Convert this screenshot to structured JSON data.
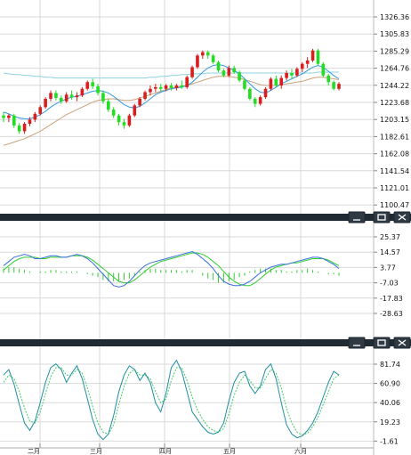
{
  "colors": {
    "up": "#d81e1e",
    "down": "#22dd22",
    "ma_short": "#3399dd",
    "ma_mid": "#c9a27a",
    "ma_long": "#8ed0e0",
    "macd_fast": "#3a6fd8",
    "macd_slow": "#33cc33",
    "kd_k": "#1f8fa0",
    "kd_d": "#44cc66",
    "panel_bar": "#1f2a33",
    "grid": "#d9d9d9"
  },
  "icons": [
    "minimize-icon",
    "restore-icon",
    "close-icon"
  ],
  "chart_data": [
    {
      "type": "candlestick",
      "panel": "price",
      "y_ticks": [
        "1326.36",
        "1305.83",
        "1285.29",
        "1264.76",
        "1244.22",
        "1223.68",
        "1203.15",
        "1182.61",
        "1162.08",
        "1141.54",
        "1121.01",
        "1100.47"
      ],
      "ylim": [
        1100.47,
        1326.36
      ],
      "x_months": [
        "二月",
        "三月",
        "四月",
        "五月",
        "六月"
      ],
      "candles": [
        [
          1208,
          1212,
          1200,
          1205
        ],
        [
          1205,
          1210,
          1200,
          1208
        ],
        [
          1208,
          1210,
          1193,
          1196
        ],
        [
          1196,
          1199,
          1186,
          1189
        ],
        [
          1189,
          1200,
          1186,
          1198
        ],
        [
          1198,
          1206,
          1195,
          1203
        ],
        [
          1203,
          1212,
          1200,
          1210
        ],
        [
          1210,
          1220,
          1208,
          1218
        ],
        [
          1218,
          1230,
          1216,
          1228
        ],
        [
          1228,
          1238,
          1225,
          1235
        ],
        [
          1235,
          1238,
          1226,
          1229
        ],
        [
          1229,
          1232,
          1222,
          1225
        ],
        [
          1225,
          1236,
          1223,
          1233
        ],
        [
          1233,
          1238,
          1227,
          1230
        ],
        [
          1230,
          1236,
          1225,
          1232
        ],
        [
          1232,
          1242,
          1230,
          1240
        ],
        [
          1240,
          1250,
          1238,
          1248
        ],
        [
          1248,
          1252,
          1240,
          1243
        ],
        [
          1243,
          1246,
          1232,
          1235
        ],
        [
          1235,
          1238,
          1222,
          1225
        ],
        [
          1225,
          1228,
          1212,
          1215
        ],
        [
          1215,
          1218,
          1205,
          1208
        ],
        [
          1208,
          1210,
          1196,
          1200
        ],
        [
          1200,
          1204,
          1192,
          1196
        ],
        [
          1196,
          1210,
          1194,
          1208
        ],
        [
          1208,
          1222,
          1206,
          1220
        ],
        [
          1220,
          1230,
          1218,
          1228
        ],
        [
          1228,
          1238,
          1226,
          1236
        ],
        [
          1236,
          1244,
          1232,
          1240
        ],
        [
          1240,
          1246,
          1236,
          1242
        ],
        [
          1242,
          1246,
          1237,
          1240
        ],
        [
          1240,
          1246,
          1237,
          1244
        ],
        [
          1244,
          1247,
          1238,
          1241
        ],
        [
          1241,
          1246,
          1238,
          1244
        ],
        [
          1244,
          1250,
          1240,
          1242
        ],
        [
          1242,
          1256,
          1240,
          1254
        ],
        [
          1254,
          1268,
          1252,
          1266
        ],
        [
          1266,
          1282,
          1264,
          1280
        ],
        [
          1280,
          1286,
          1276,
          1284
        ],
        [
          1284,
          1286,
          1276,
          1280
        ],
        [
          1280,
          1282,
          1270,
          1272
        ],
        [
          1272,
          1274,
          1260,
          1262
        ],
        [
          1262,
          1264,
          1254,
          1256
        ],
        [
          1256,
          1268,
          1254,
          1265
        ],
        [
          1265,
          1268,
          1258,
          1260
        ],
        [
          1260,
          1262,
          1248,
          1250
        ],
        [
          1250,
          1253,
          1238,
          1240
        ],
        [
          1240,
          1242,
          1226,
          1228
        ],
        [
          1228,
          1230,
          1218,
          1222
        ],
        [
          1222,
          1232,
          1220,
          1230
        ],
        [
          1230,
          1242,
          1228,
          1240
        ],
        [
          1240,
          1254,
          1238,
          1252
        ],
        [
          1252,
          1256,
          1242,
          1244
        ],
        [
          1244,
          1256,
          1240,
          1253
        ],
        [
          1253,
          1262,
          1250,
          1259
        ],
        [
          1259,
          1264,
          1252,
          1256
        ],
        [
          1256,
          1266,
          1254,
          1264
        ],
        [
          1264,
          1272,
          1260,
          1270
        ],
        [
          1270,
          1278,
          1265,
          1274
        ],
        [
          1274,
          1288,
          1272,
          1286
        ],
        [
          1286,
          1288,
          1268,
          1270
        ],
        [
          1270,
          1272,
          1254,
          1256
        ],
        [
          1256,
          1258,
          1244,
          1248
        ],
        [
          1248,
          1250,
          1238,
          1240
        ],
        [
          1240,
          1248,
          1238,
          1246
        ]
      ],
      "ma_short": [
        1212,
        1210,
        1207,
        1205,
        1204,
        1204,
        1206,
        1209,
        1213,
        1218,
        1222,
        1225,
        1228,
        1230,
        1231,
        1233,
        1235,
        1237,
        1238,
        1237,
        1235,
        1231,
        1226,
        1221,
        1218,
        1217,
        1219,
        1223,
        1228,
        1233,
        1236,
        1238,
        1240,
        1241,
        1242,
        1244,
        1248,
        1254,
        1260,
        1265,
        1268,
        1269,
        1268,
        1265,
        1262,
        1258,
        1252,
        1246,
        1240,
        1236,
        1235,
        1238,
        1242,
        1246,
        1249,
        1252,
        1255,
        1258,
        1262,
        1266,
        1268,
        1266,
        1261,
        1256,
        1252
      ],
      "ma_mid": [
        1172,
        1174,
        1176,
        1178,
        1180,
        1183,
        1186,
        1189,
        1193,
        1197,
        1201,
        1205,
        1209,
        1212,
        1215,
        1218,
        1221,
        1224,
        1226,
        1227,
        1228,
        1228,
        1227,
        1226,
        1226,
        1227,
        1229,
        1231,
        1233,
        1235,
        1237,
        1239,
        1241,
        1242,
        1243,
        1244,
        1246,
        1248,
        1250,
        1252,
        1254,
        1255,
        1255,
        1255,
        1254,
        1253,
        1251,
        1249,
        1247,
        1245,
        1244,
        1244,
        1244,
        1245,
        1246,
        1247,
        1248,
        1249,
        1251,
        1253,
        1254,
        1254,
        1253,
        1252,
        1251
      ],
      "ma_long": [
        1259,
        1258,
        1257,
        1257,
        1256,
        1256,
        1255,
        1255,
        1254,
        1254,
        1253,
        1253,
        1253,
        1253,
        1253,
        1253,
        1253,
        1253,
        1253,
        1253,
        1253,
        1253,
        1253,
        1253,
        1253,
        1253,
        1253,
        1253,
        1254,
        1254,
        1255,
        1255,
        1256,
        1256,
        1257,
        1257,
        1258,
        1258,
        1258,
        1259,
        1259,
        1259,
        1259,
        1259,
        1259,
        1259,
        1259,
        1259,
        1259,
        1259,
        1259,
        1259,
        1259,
        1259,
        1259,
        1259,
        1259,
        1259,
        1259,
        1259,
        1260,
        1260,
        1260,
        1260,
        1260
      ]
    },
    {
      "type": "line",
      "panel": "macd",
      "y_ticks": [
        "25.37",
        "14.57",
        "3.77",
        "-7.03",
        "-17.83",
        "-28.63"
      ],
      "ylim": [
        -28.63,
        25.37
      ],
      "series": [
        {
          "values": [
            5,
            8,
            11,
            12,
            13,
            12,
            10,
            10,
            11,
            12,
            12,
            11,
            11,
            12,
            13,
            12,
            10,
            7,
            3,
            -1,
            -5,
            -9,
            -10,
            -9,
            -6,
            -2,
            2,
            5,
            7,
            8,
            9,
            10,
            11,
            12,
            13,
            14,
            15,
            13,
            10,
            7,
            3,
            -2,
            -6,
            -8,
            -9,
            -9,
            -8,
            -6,
            -3,
            0,
            2,
            4,
            5,
            6,
            6,
            7,
            8,
            9,
            10,
            11,
            11,
            10,
            8,
            6,
            3
          ]
        },
        {
          "values": [
            2,
            5,
            8,
            10,
            11,
            11,
            11,
            10,
            10,
            11,
            11,
            11,
            11,
            12,
            12,
            12,
            11,
            9,
            6,
            3,
            0,
            -3,
            -6,
            -7,
            -7,
            -5,
            -2,
            1,
            4,
            6,
            8,
            9,
            10,
            11,
            12,
            13,
            14,
            14,
            13,
            11,
            8,
            5,
            1,
            -3,
            -6,
            -8,
            -9,
            -9,
            -7,
            -4,
            -1,
            2,
            4,
            5,
            6,
            7,
            7,
            8,
            9,
            10,
            10,
            10,
            9,
            7,
            5
          ]
        }
      ],
      "histogram": [
        3,
        4,
        4,
        3,
        2,
        1,
        0,
        1,
        1,
        2,
        2,
        1,
        1,
        1,
        1,
        0,
        -1,
        -2,
        -3,
        -5,
        -6,
        -6,
        -6,
        -5,
        -4,
        -2,
        1,
        2,
        3,
        3,
        2,
        2,
        2,
        2,
        1,
        2,
        2,
        0,
        -2,
        -4,
        -5,
        -7,
        -7,
        -6,
        -5,
        -3,
        -2,
        1,
        2,
        3,
        3,
        3,
        2,
        2,
        1,
        1,
        2,
        2,
        3,
        2,
        1,
        0,
        -1,
        -1,
        -2
      ]
    },
    {
      "type": "line",
      "panel": "kd",
      "y_ticks": [
        "81.74",
        "60.90",
        "40.06",
        "19.23",
        "-1.61"
      ],
      "ylim": [
        -1.61,
        81.74
      ],
      "series": [
        {
          "values": [
            70,
            76,
            60,
            38,
            18,
            10,
            20,
            40,
            62,
            78,
            82,
            76,
            62,
            72,
            80,
            66,
            44,
            22,
            6,
            0,
            6,
            26,
            52,
            70,
            80,
            76,
            64,
            72,
            62,
            40,
            30,
            50,
            78,
            86,
            74,
            52,
            30,
            22,
            14,
            8,
            6,
            8,
            18,
            42,
            62,
            72,
            74,
            58,
            50,
            58,
            76,
            82,
            66,
            40,
            16,
            6,
            2,
            4,
            10,
            18,
            30,
            46,
            62,
            74,
            70
          ]
        },
        {
          "values": [
            62,
            70,
            66,
            52,
            34,
            20,
            18,
            30,
            50,
            68,
            78,
            78,
            70,
            70,
            76,
            72,
            56,
            36,
            18,
            8,
            6,
            16,
            38,
            58,
            72,
            76,
            70,
            70,
            66,
            52,
            40,
            44,
            64,
            78,
            78,
            64,
            46,
            32,
            22,
            14,
            10,
            8,
            12,
            28,
            48,
            62,
            70,
            64,
            56,
            56,
            66,
            76,
            72,
            56,
            34,
            18,
            8,
            5,
            7,
            14,
            24,
            38,
            52,
            66,
            70
          ]
        }
      ]
    }
  ]
}
